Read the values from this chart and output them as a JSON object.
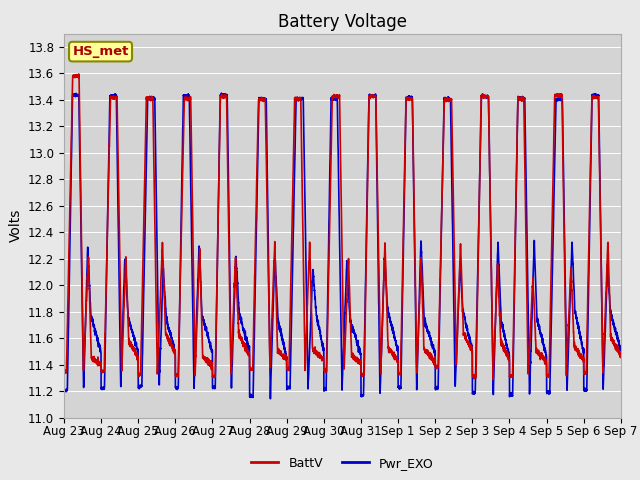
{
  "title": "Battery Voltage",
  "ylabel": "Volts",
  "xlabel": "",
  "ylim": [
    11.0,
    13.9
  ],
  "yticks": [
    11.0,
    11.2,
    11.4,
    11.6,
    11.8,
    12.0,
    12.2,
    12.4,
    12.6,
    12.8,
    13.0,
    13.2,
    13.4,
    13.6,
    13.8
  ],
  "x_labels": [
    "Aug 23",
    "Aug 24",
    "Aug 25",
    "Aug 26",
    "Aug 27",
    "Aug 28",
    "Aug 29",
    "Aug 30",
    "Aug 31",
    "Sep 1",
    "Sep 2",
    "Sep 3",
    "Sep 4",
    "Sep 5",
    "Sep 6",
    "Sep 7"
  ],
  "n_days": 15,
  "batt_color": "#cc0000",
  "exo_color": "#0000cc",
  "line_width": 1.2,
  "fig_bg_color": "#e8e8e8",
  "plot_bg_color": "#d4d4d4",
  "legend_battv": "BattV",
  "legend_exo": "Pwr_EXO",
  "station_label": "HS_met",
  "station_label_color": "#aa0000",
  "station_box_facecolor": "#ffff99",
  "station_box_edgecolor": "#888800",
  "title_fontsize": 12,
  "axis_fontsize": 10,
  "tick_fontsize": 8.5,
  "legend_fontsize": 9
}
